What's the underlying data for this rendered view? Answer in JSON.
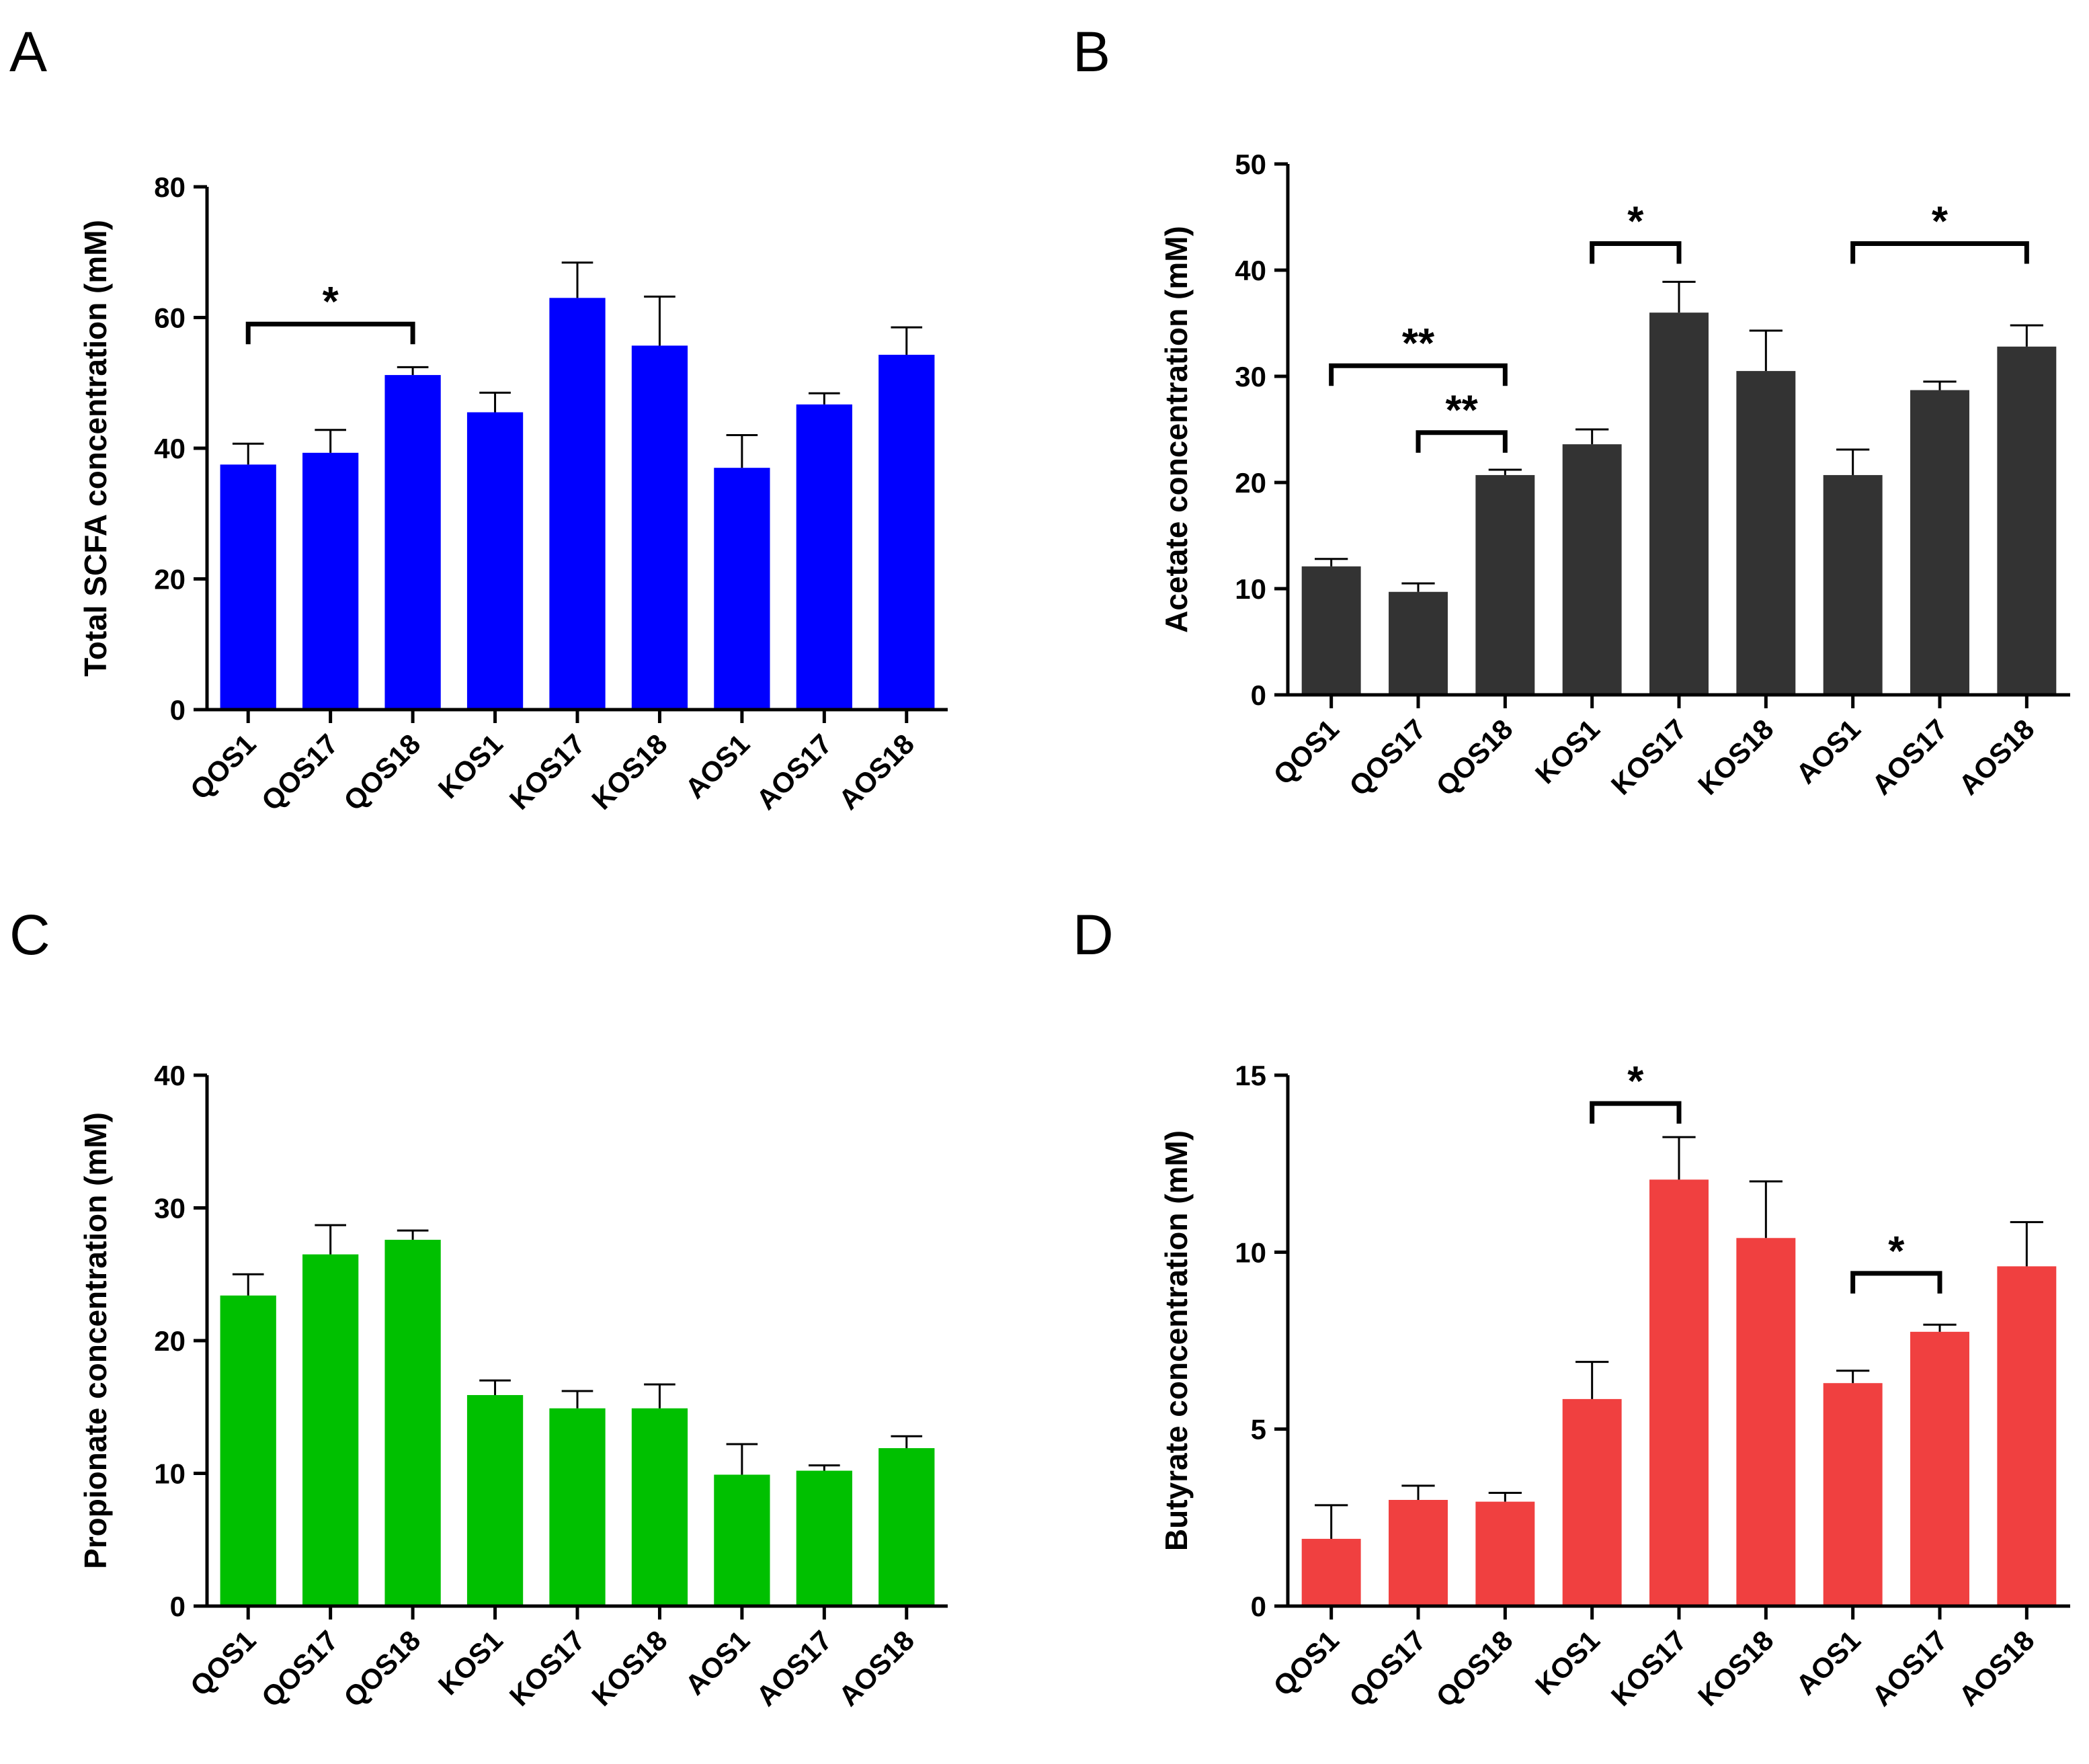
{
  "figure": {
    "panels": [
      "A",
      "B",
      "C",
      "D"
    ]
  },
  "chart_data": [
    {
      "panel": "A",
      "type": "bar",
      "ylabel": "Total SCFA concentration (mM)",
      "xlabel": "",
      "ylim": [
        0,
        80
      ],
      "yticks": [
        0,
        20,
        40,
        60,
        80
      ],
      "bar_color": "#0000ff",
      "categories": [
        "QOS1",
        "QOS17",
        "QOS18",
        "KOS1",
        "KOS17",
        "KOS18",
        "AOS1",
        "AOS17",
        "AOS18"
      ],
      "values": [
        37.5,
        39.3,
        51.2,
        45.5,
        63,
        55.7,
        37,
        46.7,
        54.3
      ],
      "errors": [
        3.2,
        3.5,
        1.2,
        3,
        5.4,
        7.5,
        5,
        1.7,
        4.2
      ],
      "significance": [
        {
          "from": 0,
          "to": 2,
          "label": "*",
          "level": 59
        }
      ]
    },
    {
      "panel": "B",
      "type": "bar",
      "ylabel": "Acetate concentration (mM)",
      "xlabel": "",
      "ylim": [
        0,
        50
      ],
      "yticks": [
        0,
        10,
        20,
        30,
        40,
        50
      ],
      "bar_color": "#333333",
      "categories": [
        "QOS1",
        "QOS17",
        "QOS18",
        "KOS1",
        "KOS17",
        "KOS18",
        "AOS1",
        "AOS17",
        "AOS18"
      ],
      "values": [
        12.1,
        9.7,
        20.7,
        23.6,
        36,
        30.5,
        20.7,
        28.7,
        32.8
      ],
      "errors": [
        0.7,
        0.8,
        0.5,
        1.4,
        2.9,
        3.8,
        2.4,
        0.8,
        2
      ],
      "significance": [
        {
          "from": 0,
          "to": 2,
          "label": "**",
          "level": 31
        },
        {
          "from": 1,
          "to": 2,
          "label": "**",
          "level": 24.7
        },
        {
          "from": 3,
          "to": 4,
          "label": "*",
          "level": 42.5
        },
        {
          "from": 6,
          "to": 8,
          "label": "*",
          "level": 42.5
        }
      ]
    },
    {
      "panel": "C",
      "type": "bar",
      "ylabel": "Propionate concentration (mM)",
      "xlabel": "",
      "ylim": [
        0,
        40
      ],
      "yticks": [
        0,
        10,
        20,
        30,
        40
      ],
      "bar_color": "#00c000",
      "categories": [
        "QOS1",
        "QOS17",
        "QOS18",
        "KOS1",
        "KOS17",
        "KOS18",
        "AOS1",
        "AOS17",
        "AOS18"
      ],
      "values": [
        23.4,
        26.5,
        27.6,
        15.9,
        14.9,
        14.9,
        9.9,
        10.2,
        11.9
      ],
      "errors": [
        1.6,
        2.2,
        0.7,
        1.1,
        1.3,
        1.8,
        2.3,
        0.4,
        0.9
      ],
      "significance": []
    },
    {
      "panel": "D",
      "type": "bar",
      "ylabel": "Butyrate concentration (mM)",
      "xlabel": "",
      "ylim": [
        0,
        15
      ],
      "yticks": [
        0,
        5,
        10,
        15
      ],
      "bar_color": "#f04040",
      "categories": [
        "QOS1",
        "QOS17",
        "QOS18",
        "KOS1",
        "KOS17",
        "KOS18",
        "AOS1",
        "AOS17",
        "AOS18"
      ],
      "values": [
        1.9,
        3,
        2.95,
        5.85,
        12.05,
        10.4,
        6.3,
        7.75,
        9.6
      ],
      "errors": [
        0.95,
        0.4,
        0.25,
        1.05,
        1.2,
        1.6,
        0.35,
        0.2,
        1.25
      ],
      "significance": [
        {
          "from": 3,
          "to": 4,
          "label": "*",
          "level": 14.2
        },
        {
          "from": 6,
          "to": 7,
          "label": "*",
          "level": 9.4
        }
      ]
    }
  ]
}
